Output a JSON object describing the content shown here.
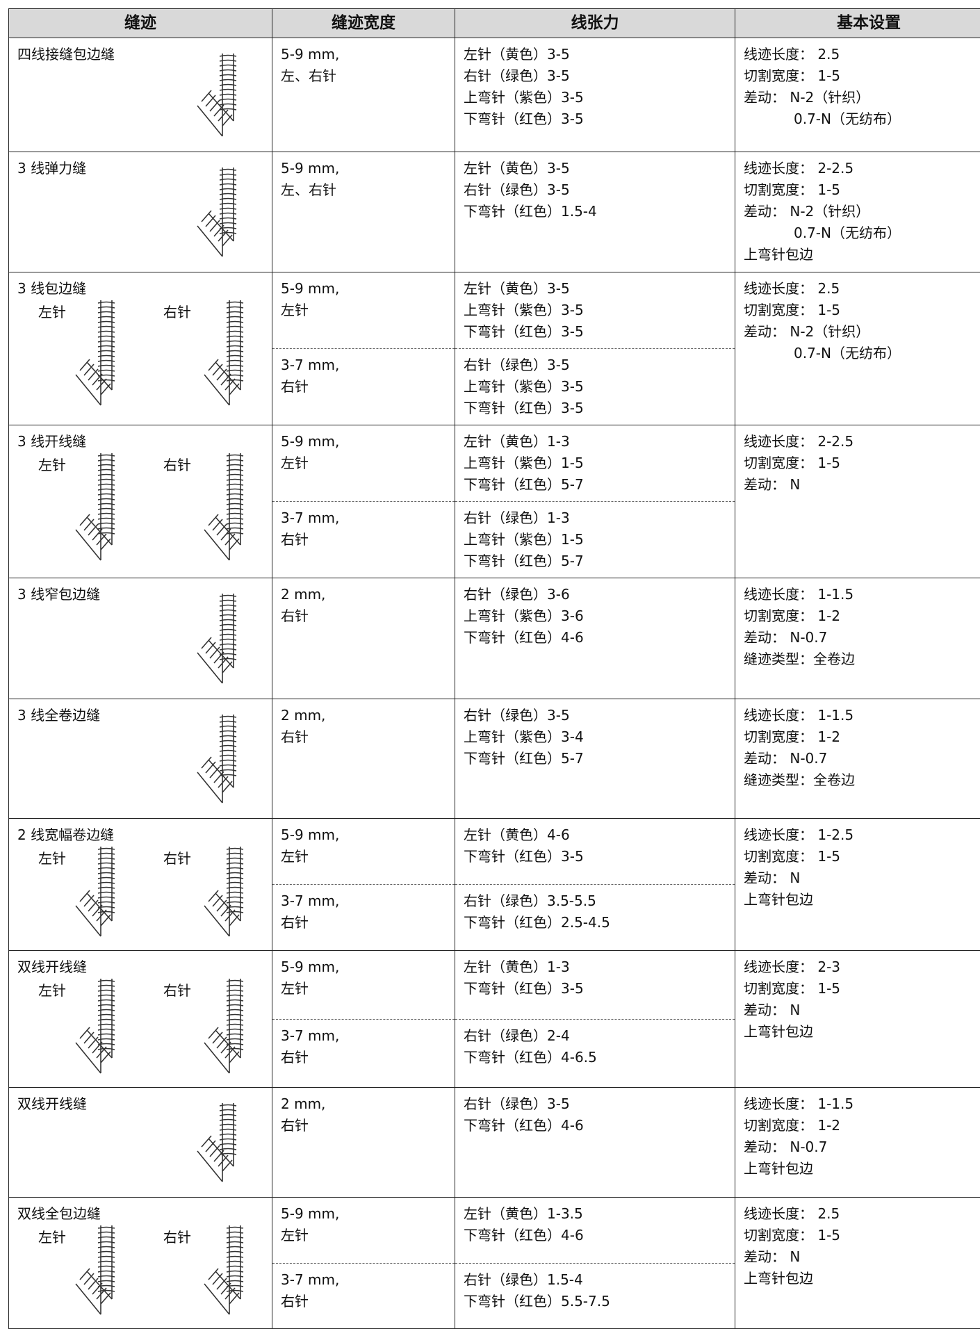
{
  "table": {
    "header": [
      "缝迹",
      "缝迹宽度",
      "线张力",
      "基本设置"
    ],
    "rows": [
      {
        "stitch": "四线接缝包边缝",
        "variants": [
          {
            "width": [
              "5-9 mm,",
              "左、右针"
            ],
            "tension": [
              "左针（黄色）3-5",
              "右针（绿色）3-5",
              "上弯针（紫色）3-5",
              "下弯针（红色）3-5"
            ]
          }
        ],
        "settings": [
          "线迹长度： 2.5",
          "切割宽度： 1-5",
          "差动： N-2（针织）",
          "0.7-N（无纺布）"
        ]
      },
      {
        "stitch": "3 线弹力缝",
        "variants": [
          {
            "width": [
              "5-9 mm,",
              "左、右针"
            ],
            "tension": [
              "左针（黄色）3-5",
              "右针（绿色）3-5",
              "下弯针（红色）1.5-4"
            ]
          }
        ],
        "settings": [
          "线迹长度： 2-2.5",
          "切割宽度： 1-5",
          "差动： N-2（针织）",
          "0.7-N（无纺布）",
          "上弯针包边"
        ]
      },
      {
        "stitch": "3 线包边缝",
        "needles": [
          "左针",
          "右针"
        ],
        "variants": [
          {
            "width": [
              "5-9 mm,",
              "左针"
            ],
            "tension": [
              "左针（黄色）3-5",
              "上弯针（紫色）3-5",
              "下弯针（红色）3-5"
            ]
          },
          {
            "width": [
              "3-7 mm,",
              "右针"
            ],
            "tension": [
              "右针（绿色）3-5",
              "上弯针（紫色）3-5",
              "下弯针（红色）3-5"
            ]
          }
        ],
        "settings": [
          "线迹长度： 2.5",
          "切割宽度： 1-5",
          "差动： N-2（针织）",
          "0.7-N（无纺布）"
        ]
      },
      {
        "stitch": "3 线开线缝",
        "needles": [
          "左针",
          "右针"
        ],
        "variants": [
          {
            "width": [
              "5-9 mm,",
              "左针"
            ],
            "tension": [
              "左针（黄色）1-3",
              "上弯针（紫色）1-5",
              "下弯针（红色）5-7"
            ]
          },
          {
            "width": [
              "3-7 mm,",
              "右针"
            ],
            "tension": [
              "右针（绿色）1-3",
              "上弯针（紫色）1-5",
              "下弯针（红色）5-7"
            ]
          }
        ],
        "settings": [
          "线迹长度： 2-2.5",
          "切割宽度： 1-5",
          "差动： N"
        ]
      },
      {
        "stitch": "3 线窄包边缝",
        "variants": [
          {
            "width": [
              "2 mm,",
              "右针"
            ],
            "tension": [
              "右针（绿色）3-6",
              "上弯针（紫色）3-6",
              "下弯针（红色）4-6"
            ]
          }
        ],
        "settings": [
          "线迹长度： 1-1.5",
          "切割宽度： 1-2",
          "差动： N-0.7",
          "缝迹类型：全卷边"
        ]
      },
      {
        "stitch": "3 线全卷边缝",
        "variants": [
          {
            "width": [
              "2 mm,",
              "右针"
            ],
            "tension": [
              "右针（绿色）3-5",
              "上弯针（紫色）3-4",
              "下弯针（红色）5-7"
            ]
          }
        ],
        "settings": [
          "线迹长度： 1-1.5",
          "切割宽度： 1-2",
          "差动： N-0.7",
          "缝迹类型：全卷边"
        ]
      },
      {
        "stitch": "2 线宽幅卷边缝",
        "needles": [
          "左针",
          "右针"
        ],
        "variants": [
          {
            "width": [
              "5-9 mm,",
              "左针"
            ],
            "tension": [
              "左针（黄色）4-6",
              "下弯针（红色）3-5"
            ]
          },
          {
            "width": [
              "3-7 mm,",
              "右针"
            ],
            "tension": [
              "右针（绿色）3.5-5.5",
              "下弯针（红色）2.5-4.5"
            ]
          }
        ],
        "settings": [
          "线迹长度： 1-2.5",
          "切割宽度： 1-5",
          "差动： N",
          "上弯针包边"
        ]
      },
      {
        "stitch": "双线开线缝",
        "needles": [
          "左针",
          "右针"
        ],
        "variants": [
          {
            "width": [
              "5-9 mm,",
              "左针"
            ],
            "tension": [
              "左针（黄色）1-3",
              "下弯针（红色）3-5"
            ]
          },
          {
            "width": [
              "3-7 mm,",
              "右针"
            ],
            "tension": [
              "右针（绿色）2-4",
              "下弯针（红色）4-6.5"
            ]
          }
        ],
        "settings": [
          "线迹长度： 2-3",
          "切割宽度： 1-5",
          "差动： N",
          "上弯针包边"
        ]
      },
      {
        "stitch": "双线开线缝",
        "variants": [
          {
            "width": [
              "2 mm,",
              "右针"
            ],
            "tension": [
              "右针（绿色）3-5",
              "下弯针（红色）4-6"
            ]
          }
        ],
        "settings": [
          "线迹长度： 1-1.5",
          "切割宽度： 1-2",
          "差动： N-0.7",
          "上弯针包边"
        ]
      },
      {
        "stitch": "双线全包边缝",
        "needles": [
          "左针",
          "右针"
        ],
        "variants": [
          {
            "width": [
              "5-9 mm,",
              "左针"
            ],
            "tension": [
              "左针（黄色）1-3.5",
              "下弯针（红色）4-6"
            ]
          },
          {
            "width": [
              "3-7 mm,",
              "右针"
            ],
            "tension": [
              "右针（绿色）1.5-4",
              "下弯针（红色）5.5-7.5"
            ]
          }
        ],
        "settings": [
          "线迹长度： 2.5",
          "切割宽度： 1-5",
          "差动： N",
          "上弯针包边"
        ]
      }
    ]
  }
}
